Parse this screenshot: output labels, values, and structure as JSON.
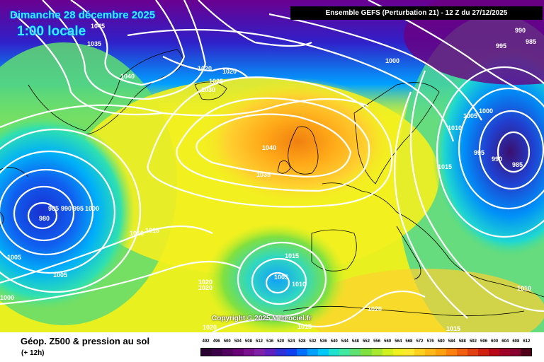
{
  "header": {
    "title_date": "Dimanche 28 décembre 2025",
    "title_time": "1:00 locale",
    "model_run": "Ensemble GEFS  (Perturbation 21)  -  12 Z du 27/12/2025"
  },
  "copyright": "Copyright © 2025 Meteociel.fr",
  "footer": {
    "title": "Géop. Z500 & pression au sol",
    "subtitle": "(+ 12h)"
  },
  "scale": {
    "values": [
      "492",
      "496",
      "500",
      "504",
      "508",
      "512",
      "516",
      "520",
      "524",
      "528",
      "532",
      "536",
      "540",
      "544",
      "548",
      "552",
      "556",
      "560",
      "564",
      "568",
      "572",
      "576",
      "580",
      "584",
      "588",
      "592",
      "596",
      "600",
      "604",
      "608",
      "612"
    ],
    "colors": [
      "#2a0030",
      "#3c0048",
      "#520060",
      "#6a0078",
      "#7a1090",
      "#8020a8",
      "#6020c0",
      "#3030d8",
      "#1040f0",
      "#0070ff",
      "#00a0ff",
      "#00c8f8",
      "#20e0d0",
      "#40e8a0",
      "#60e070",
      "#80e040",
      "#a8e830",
      "#d0f020",
      "#f0f020",
      "#ffe830",
      "#ffd020",
      "#ffb818",
      "#ffa010",
      "#ff8010",
      "#f06010",
      "#e04010",
      "#d02010",
      "#b80818",
      "#a00028",
      "#880030",
      "#500018"
    ]
  },
  "isobars": [
    "1045",
    "1035",
    "1040",
    "1020",
    "1020",
    "1025",
    "1030",
    "1000",
    "995",
    "990",
    "985",
    "1005",
    "1000",
    "1010",
    "995",
    "990",
    "985",
    "1015",
    "1040",
    "1035",
    "985",
    "990",
    "995",
    "1000",
    "980",
    "1010",
    "1015",
    "1005",
    "1005",
    "1000",
    "1015",
    "1005",
    "1010",
    "1020",
    "1020",
    "1020",
    "1010",
    "1020",
    "1015",
    "1015"
  ]
}
